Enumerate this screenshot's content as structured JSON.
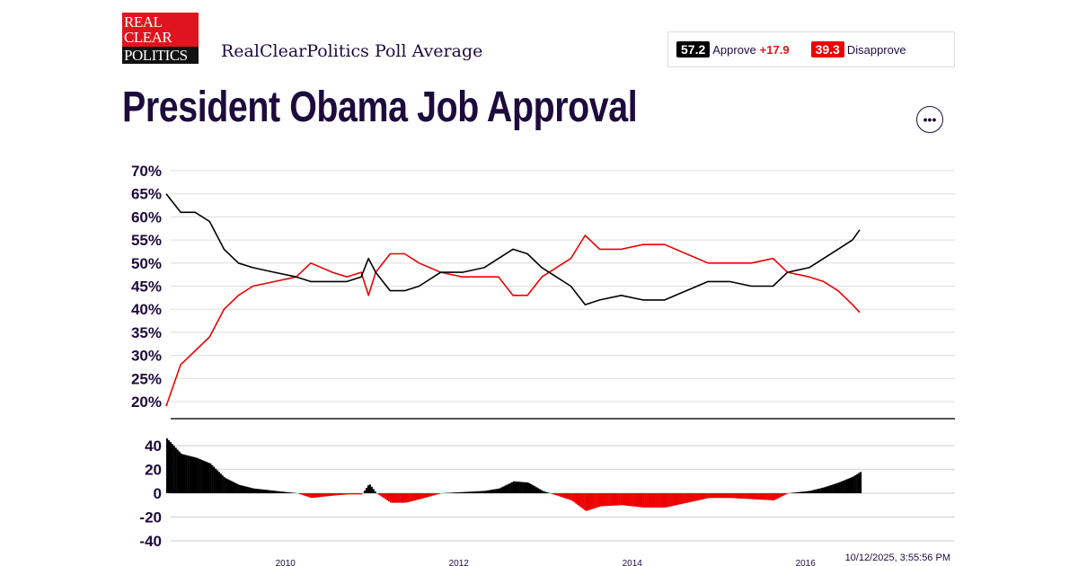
{
  "header": {
    "logo_text": [
      "REAL",
      "CLEAR",
      "POLITICS"
    ],
    "subtitle": "RealClearPolitics Poll Average",
    "title": "President Obama Job Approval",
    "menu_label": "•••"
  },
  "summary": {
    "approve_value": "57.2",
    "approve_label": "Approve",
    "spread": "+17.9",
    "disapprove_value": "39.3",
    "disapprove_label": "Disapprove"
  },
  "timestamp": "10/12/2025, 3:55:56 PM",
  "colors": {
    "approve": "#000000",
    "disapprove": "#ee0000",
    "text": "#1e0b3d"
  },
  "chart_data": [
    {
      "type": "line",
      "ylim": [
        20,
        70
      ],
      "y_ticks": [
        "70%",
        "65%",
        "60%",
        "55%",
        "50%",
        "45%",
        "40%",
        "35%",
        "30%",
        "25%",
        "20%"
      ],
      "grid": true,
      "x": [
        "2009-01",
        "2009-03",
        "2009-05",
        "2009-07",
        "2009-09",
        "2009-11",
        "2010-01",
        "2010-04",
        "2010-07",
        "2010-09",
        "2010-12",
        "2011-02",
        "2011-04",
        "2011-05",
        "2011-06",
        "2011-08",
        "2011-10",
        "2011-12",
        "2012-03",
        "2012-06",
        "2012-09",
        "2012-11",
        "2013-01",
        "2013-03",
        "2013-05",
        "2013-07",
        "2013-09",
        "2013-11",
        "2014-01",
        "2014-04",
        "2014-07",
        "2014-10",
        "2015-01",
        "2015-04",
        "2015-07",
        "2015-10",
        "2016-01",
        "2016-03",
        "2016-06",
        "2016-08",
        "2016-10",
        "2016-12",
        "2017-01"
      ],
      "series": [
        {
          "name": "Approve",
          "values": [
            65,
            61,
            61,
            59,
            53,
            50,
            49,
            48,
            47,
            46,
            46,
            46,
            47,
            51,
            48,
            44,
            44,
            45,
            48,
            48,
            49,
            51,
            53,
            52,
            49,
            47,
            45,
            41,
            42,
            43,
            42,
            42,
            44,
            46,
            46,
            45,
            45,
            48,
            49,
            51,
            53,
            55,
            57.2
          ]
        },
        {
          "name": "Disapprove",
          "values": [
            19,
            28,
            31,
            34,
            40,
            43,
            45,
            46,
            47,
            50,
            48,
            47,
            48,
            43,
            48,
            52,
            52,
            50,
            48,
            47,
            47,
            47,
            43,
            43,
            47,
            49,
            51,
            56,
            53,
            53,
            54,
            54,
            52,
            50,
            50,
            50,
            51,
            48,
            47,
            46,
            44,
            41,
            39.3
          ]
        }
      ]
    },
    {
      "type": "area",
      "ylim": [
        -40,
        40
      ],
      "y_ticks": [
        "40",
        "20",
        "0",
        "-20",
        "-40"
      ],
      "x_ticks": [
        "2010",
        "2012",
        "2014",
        "2016"
      ],
      "grid": true,
      "values_note_free": true
    }
  ]
}
